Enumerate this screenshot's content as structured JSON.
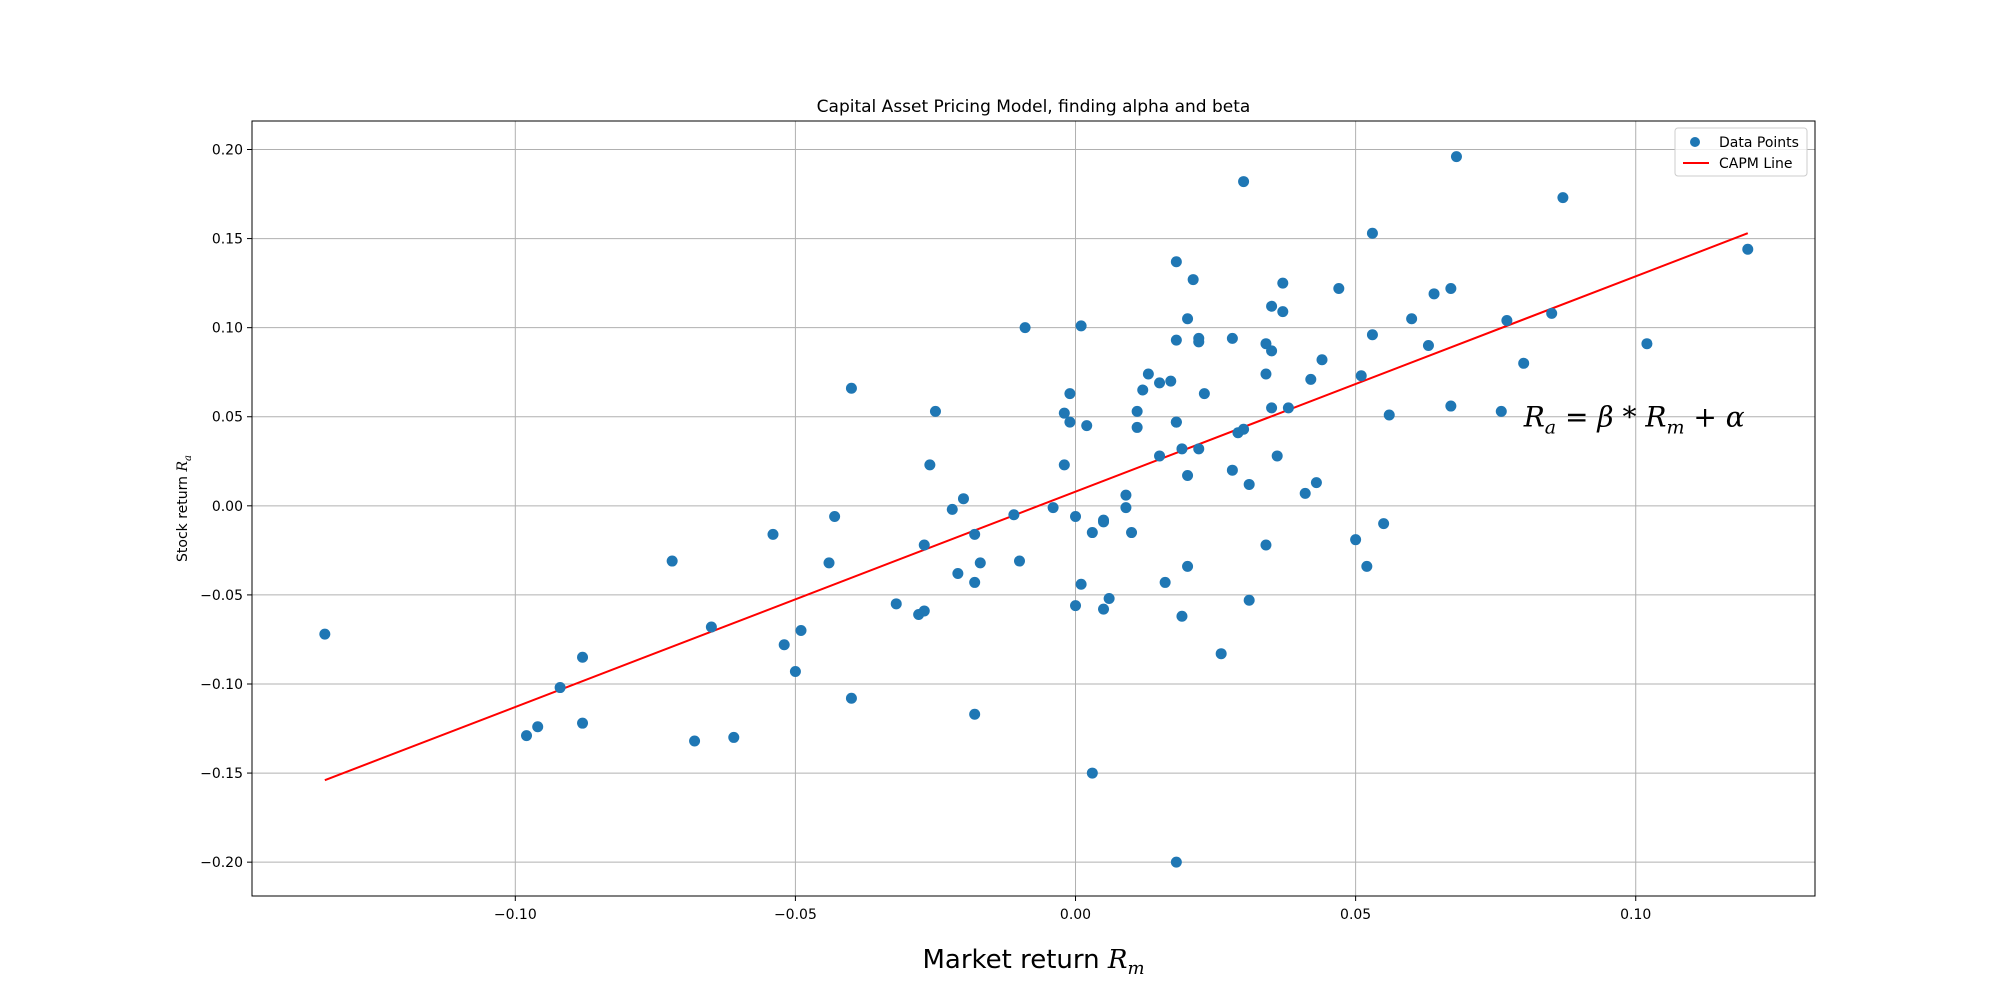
{
  "chart_data": {
    "type": "scatter",
    "title": "Capital Asset Pricing Model, finding alpha and beta",
    "xlabel": "Market return R_m",
    "ylabel": "Stock return R_a",
    "xlim": [
      -0.147,
      0.132
    ],
    "ylim": [
      -0.219,
      0.216
    ],
    "grid": true,
    "legend_position": "top-right",
    "annotation": "R_a = β * R_m + α",
    "x_ticks": [
      -0.1,
      -0.05,
      0.0,
      0.05,
      0.1
    ],
    "x_tick_labels": [
      "−0.10",
      "−0.05",
      "0.00",
      "0.05",
      "0.10"
    ],
    "y_ticks": [
      0.2,
      0.15,
      0.1,
      0.05,
      0.0,
      -0.05,
      -0.1,
      -0.15,
      -0.2
    ],
    "y_tick_labels": [
      "0.20",
      "0.15",
      "0.10",
      "0.05",
      "0.00",
      "−0.05",
      "−0.10",
      "−0.15",
      "−0.20"
    ],
    "series": [
      {
        "name": "Data Points",
        "kind": "scatter",
        "color": "#1f77b4",
        "points": [
          [
            -0.134,
            -0.072
          ],
          [
            -0.098,
            -0.129
          ],
          [
            -0.096,
            -0.124
          ],
          [
            -0.092,
            -0.102
          ],
          [
            -0.088,
            -0.122
          ],
          [
            -0.088,
            -0.085
          ],
          [
            -0.072,
            -0.031
          ],
          [
            -0.068,
            -0.132
          ],
          [
            -0.065,
            -0.068
          ],
          [
            -0.061,
            -0.13
          ],
          [
            -0.054,
            -0.016
          ],
          [
            -0.052,
            -0.078
          ],
          [
            -0.05,
            -0.093
          ],
          [
            -0.049,
            -0.07
          ],
          [
            -0.044,
            -0.032
          ],
          [
            -0.043,
            -0.006
          ],
          [
            -0.04,
            -0.108
          ],
          [
            -0.04,
            0.066
          ],
          [
            -0.032,
            -0.055
          ],
          [
            -0.028,
            -0.061
          ],
          [
            -0.027,
            -0.059
          ],
          [
            -0.027,
            -0.022
          ],
          [
            -0.026,
            0.023
          ],
          [
            -0.025,
            0.053
          ],
          [
            -0.022,
            -0.002
          ],
          [
            -0.021,
            -0.038
          ],
          [
            -0.02,
            0.004
          ],
          [
            -0.018,
            -0.016
          ],
          [
            -0.018,
            -0.043
          ],
          [
            -0.018,
            -0.117
          ],
          [
            -0.017,
            -0.032
          ],
          [
            -0.011,
            -0.005
          ],
          [
            -0.01,
            -0.031
          ],
          [
            -0.009,
            0.1
          ],
          [
            -0.004,
            -0.001
          ],
          [
            -0.002,
            0.052
          ],
          [
            -0.002,
            0.023
          ],
          [
            -0.001,
            0.063
          ],
          [
            -0.001,
            0.047
          ],
          [
            0.0,
            -0.056
          ],
          [
            0.0,
            -0.006
          ],
          [
            0.001,
            0.101
          ],
          [
            0.001,
            -0.044
          ],
          [
            0.002,
            0.045
          ],
          [
            0.003,
            -0.015
          ],
          [
            0.003,
            -0.15
          ],
          [
            0.005,
            -0.008
          ],
          [
            0.005,
            -0.058
          ],
          [
            0.005,
            -0.009
          ],
          [
            0.006,
            -0.052
          ],
          [
            0.009,
            0.006
          ],
          [
            0.009,
            -0.001
          ],
          [
            0.01,
            -0.015
          ],
          [
            0.011,
            0.044
          ],
          [
            0.011,
            0.053
          ],
          [
            0.012,
            0.065
          ],
          [
            0.013,
            0.074
          ],
          [
            0.015,
            0.028
          ],
          [
            0.015,
            0.069
          ],
          [
            0.016,
            -0.043
          ],
          [
            0.017,
            0.07
          ],
          [
            0.018,
            0.093
          ],
          [
            0.018,
            0.047
          ],
          [
            0.018,
            0.137
          ],
          [
            0.018,
            -0.2
          ],
          [
            0.018,
            0.047
          ],
          [
            0.019,
            0.032
          ],
          [
            0.019,
            -0.062
          ],
          [
            0.02,
            -0.034
          ],
          [
            0.02,
            0.105
          ],
          [
            0.02,
            0.017
          ],
          [
            0.021,
            0.127
          ],
          [
            0.022,
            0.094
          ],
          [
            0.022,
            0.092
          ],
          [
            0.022,
            0.032
          ],
          [
            0.023,
            0.063
          ],
          [
            0.026,
            -0.083
          ],
          [
            0.028,
            0.02
          ],
          [
            0.028,
            0.094
          ],
          [
            0.029,
            0.041
          ],
          [
            0.03,
            0.043
          ],
          [
            0.03,
            0.182
          ],
          [
            0.031,
            0.012
          ],
          [
            0.031,
            -0.053
          ],
          [
            0.034,
            -0.022
          ],
          [
            0.034,
            0.074
          ],
          [
            0.034,
            0.091
          ],
          [
            0.035,
            0.112
          ],
          [
            0.035,
            0.087
          ],
          [
            0.035,
            0.055
          ],
          [
            0.036,
            0.028
          ],
          [
            0.037,
            0.109
          ],
          [
            0.037,
            0.125
          ],
          [
            0.038,
            0.055
          ],
          [
            0.041,
            0.007
          ],
          [
            0.042,
            0.071
          ],
          [
            0.043,
            0.013
          ],
          [
            0.044,
            0.082
          ],
          [
            0.047,
            0.122
          ],
          [
            0.05,
            -0.019
          ],
          [
            0.051,
            0.073
          ],
          [
            0.052,
            -0.034
          ],
          [
            0.053,
            0.096
          ],
          [
            0.053,
            0.153
          ],
          [
            0.055,
            -0.01
          ],
          [
            0.056,
            0.051
          ],
          [
            0.06,
            0.105
          ],
          [
            0.063,
            0.09
          ],
          [
            0.064,
            0.119
          ],
          [
            0.067,
            0.122
          ],
          [
            0.067,
            0.056
          ],
          [
            0.068,
            0.196
          ],
          [
            0.076,
            0.053
          ],
          [
            0.077,
            0.104
          ],
          [
            0.08,
            0.08
          ],
          [
            0.085,
            0.108
          ],
          [
            0.087,
            0.173
          ],
          [
            0.102,
            0.091
          ],
          [
            0.12,
            0.144
          ]
        ]
      },
      {
        "name": "CAPM Line",
        "kind": "line",
        "color": "#ff0000",
        "points": [
          [
            -0.134,
            -0.154
          ],
          [
            0.12,
            0.153
          ]
        ]
      }
    ]
  }
}
